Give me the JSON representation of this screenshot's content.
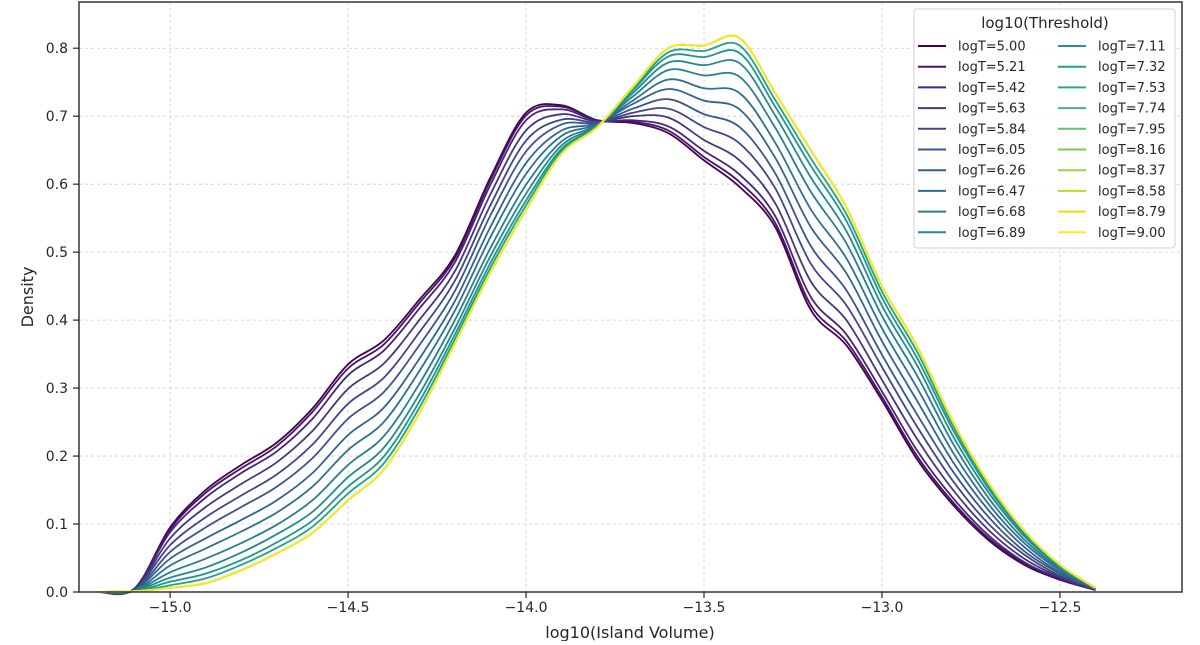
{
  "chart_data": {
    "type": "line",
    "xlabel": "log10(Island Volume)",
    "ylabel": "Density",
    "xlim": [
      -15.256,
      -12.157
    ],
    "ylim": [
      0.0,
      0.868
    ],
    "xticks": [
      "−15.0",
      "−14.5",
      "−14.0",
      "−13.5",
      "−13.0",
      "−12.5"
    ],
    "xtick_values": [
      -15.0,
      -14.5,
      -14.0,
      -13.5,
      -13.0,
      -12.5
    ],
    "yticks": [
      "0.0",
      "0.1",
      "0.2",
      "0.3",
      "0.4",
      "0.5",
      "0.6",
      "0.7",
      "0.8"
    ],
    "ytick_values": [
      0.0,
      0.1,
      0.2,
      0.3,
      0.4,
      0.5,
      0.6,
      0.7,
      0.8
    ],
    "grid": true,
    "legend": {
      "title": "log10(Threshold)",
      "placement": "top-right",
      "columns": 2
    },
    "x": [
      -15.2,
      -15.1,
      -15.0,
      -14.9,
      -14.8,
      -14.7,
      -14.6,
      -14.5,
      -14.4,
      -14.3,
      -14.2,
      -14.1,
      -14.0,
      -13.9,
      -13.8,
      -13.7,
      -13.6,
      -13.5,
      -13.4,
      -13.3,
      -13.2,
      -13.1,
      -13.0,
      -12.9,
      -12.8,
      -12.7,
      -12.6,
      -12.5,
      -12.4
    ],
    "series": [
      {
        "name": "logT=5.00",
        "color": "#440154",
        "values": [
          0,
          0.005,
          0.095,
          0.15,
          0.187,
          0.22,
          0.27,
          0.335,
          0.37,
          0.43,
          0.495,
          0.61,
          0.705,
          0.716,
          0.694,
          0.69,
          0.675,
          0.635,
          0.596,
          0.537,
          0.415,
          0.363,
          0.282,
          0.194,
          0.128,
          0.076,
          0.04,
          0.018,
          0.003
        ]
      },
      {
        "name": "logT=5.21",
        "color": "#481467",
        "values": [
          0,
          0.005,
          0.092,
          0.146,
          0.182,
          0.215,
          0.265,
          0.329,
          0.364,
          0.425,
          0.491,
          0.606,
          0.701,
          0.714,
          0.694,
          0.692,
          0.679,
          0.64,
          0.603,
          0.543,
          0.422,
          0.369,
          0.287,
          0.199,
          0.132,
          0.079,
          0.042,
          0.019,
          0.003
        ]
      },
      {
        "name": "logT=5.42",
        "color": "#482576",
        "values": [
          0,
          0.005,
          0.088,
          0.139,
          0.175,
          0.207,
          0.255,
          0.319,
          0.355,
          0.417,
          0.485,
          0.599,
          0.694,
          0.71,
          0.693,
          0.694,
          0.685,
          0.649,
          0.614,
          0.553,
          0.434,
          0.379,
          0.295,
          0.207,
          0.138,
          0.083,
          0.044,
          0.02,
          0.003
        ]
      },
      {
        "name": "logT=5.63",
        "color": "#453781",
        "values": [
          0,
          0.004,
          0.079,
          0.125,
          0.159,
          0.191,
          0.237,
          0.299,
          0.336,
          0.4,
          0.472,
          0.585,
          0.679,
          0.703,
          0.692,
          0.7,
          0.698,
          0.665,
          0.635,
          0.572,
          0.457,
          0.4,
          0.312,
          0.224,
          0.15,
          0.091,
          0.049,
          0.022,
          0.004
        ]
      },
      {
        "name": "logT=5.84",
        "color": "#404688",
        "values": [
          0,
          0.004,
          0.069,
          0.11,
          0.142,
          0.173,
          0.217,
          0.277,
          0.315,
          0.382,
          0.458,
          0.569,
          0.664,
          0.695,
          0.691,
          0.705,
          0.711,
          0.684,
          0.66,
          0.594,
          0.483,
          0.422,
          0.331,
          0.242,
          0.163,
          0.1,
          0.055,
          0.024,
          0.004
        ]
      },
      {
        "name": "logT=6.05",
        "color": "#39558c",
        "values": [
          0,
          0.003,
          0.059,
          0.095,
          0.125,
          0.155,
          0.197,
          0.255,
          0.294,
          0.363,
          0.443,
          0.554,
          0.648,
          0.688,
          0.69,
          0.711,
          0.725,
          0.703,
          0.684,
          0.616,
          0.509,
          0.444,
          0.349,
          0.26,
          0.177,
          0.11,
          0.06,
          0.027,
          0.004
        ]
      },
      {
        "name": "logT=6.26",
        "color": "#33638d",
        "values": [
          0,
          0.003,
          0.049,
          0.079,
          0.106,
          0.135,
          0.175,
          0.231,
          0.271,
          0.343,
          0.428,
          0.537,
          0.631,
          0.679,
          0.689,
          0.718,
          0.74,
          0.723,
          0.71,
          0.639,
          0.537,
          0.469,
          0.369,
          0.28,
          0.191,
          0.12,
          0.066,
          0.029,
          0.005
        ]
      },
      {
        "name": "logT=6.47",
        "color": "#2d718e",
        "values": [
          0,
          0.002,
          0.039,
          0.064,
          0.089,
          0.117,
          0.155,
          0.209,
          0.25,
          0.325,
          0.414,
          0.522,
          0.615,
          0.671,
          0.688,
          0.723,
          0.754,
          0.741,
          0.734,
          0.661,
          0.563,
          0.491,
          0.388,
          0.299,
          0.205,
          0.129,
          0.072,
          0.032,
          0.005
        ]
      },
      {
        "name": "logT=6.68",
        "color": "#287d8e",
        "values": [
          0,
          0.002,
          0.029,
          0.049,
          0.072,
          0.099,
          0.135,
          0.187,
          0.229,
          0.306,
          0.4,
          0.506,
          0.599,
          0.663,
          0.687,
          0.729,
          0.768,
          0.76,
          0.758,
          0.683,
          0.589,
          0.513,
          0.406,
          0.317,
          0.218,
          0.138,
          0.077,
          0.034,
          0.005
        ]
      },
      {
        "name": "logT=6.89",
        "color": "#238a8d",
        "values": [
          0,
          0.002,
          0.021,
          0.036,
          0.058,
          0.085,
          0.118,
          0.169,
          0.212,
          0.291,
          0.388,
          0.494,
          0.586,
          0.657,
          0.686,
          0.734,
          0.779,
          0.775,
          0.778,
          0.701,
          0.61,
          0.531,
          0.421,
          0.332,
          0.229,
          0.146,
          0.082,
          0.036,
          0.005
        ]
      },
      {
        "name": "logT=7.11",
        "color": "#1f968b",
        "values": [
          0,
          0.001,
          0.015,
          0.027,
          0.047,
          0.073,
          0.105,
          0.155,
          0.199,
          0.28,
          0.379,
          0.484,
          0.576,
          0.652,
          0.685,
          0.738,
          0.788,
          0.787,
          0.793,
          0.714,
          0.627,
          0.546,
          0.433,
          0.343,
          0.238,
          0.152,
          0.085,
          0.038,
          0.006
        ]
      },
      {
        "name": "logT=7.32",
        "color": "#20a386",
        "values": [
          0,
          0.001,
          0.01,
          0.02,
          0.04,
          0.065,
          0.096,
          0.145,
          0.189,
          0.271,
          0.372,
          0.477,
          0.569,
          0.649,
          0.684,
          0.74,
          0.794,
          0.796,
          0.804,
          0.724,
          0.638,
          0.556,
          0.442,
          0.352,
          0.244,
          0.156,
          0.088,
          0.039,
          0.006
        ]
      },
      {
        "name": "logT=7.53",
        "color": "#29af7f",
        "values": [
          0,
          0.001,
          0.006,
          0.013,
          0.032,
          0.057,
          0.087,
          0.135,
          0.18,
          0.263,
          0.366,
          0.47,
          0.562,
          0.645,
          0.684,
          0.743,
          0.8,
          0.804,
          0.815,
          0.734,
          0.65,
          0.566,
          0.45,
          0.36,
          0.25,
          0.16,
          0.09,
          0.04,
          0.006
        ]
      },
      {
        "name": "logT=7.74",
        "color": "#3dbc74",
        "values": [
          0,
          0.001,
          0.006,
          0.013,
          0.032,
          0.057,
          0.087,
          0.135,
          0.18,
          0.263,
          0.366,
          0.47,
          0.562,
          0.645,
          0.684,
          0.743,
          0.8,
          0.804,
          0.815,
          0.734,
          0.65,
          0.566,
          0.45,
          0.36,
          0.25,
          0.16,
          0.09,
          0.04,
          0.006
        ]
      },
      {
        "name": "logT=7.95",
        "color": "#56c667",
        "values": [
          0,
          0.001,
          0.006,
          0.013,
          0.032,
          0.057,
          0.087,
          0.135,
          0.18,
          0.263,
          0.366,
          0.47,
          0.562,
          0.645,
          0.684,
          0.743,
          0.8,
          0.804,
          0.815,
          0.734,
          0.65,
          0.566,
          0.45,
          0.36,
          0.25,
          0.16,
          0.09,
          0.04,
          0.006
        ]
      },
      {
        "name": "logT=8.16",
        "color": "#75d054",
        "values": [
          0,
          0.001,
          0.006,
          0.013,
          0.032,
          0.057,
          0.087,
          0.135,
          0.18,
          0.263,
          0.366,
          0.47,
          0.562,
          0.645,
          0.684,
          0.743,
          0.8,
          0.804,
          0.815,
          0.734,
          0.65,
          0.566,
          0.45,
          0.36,
          0.25,
          0.16,
          0.09,
          0.04,
          0.006
        ]
      },
      {
        "name": "logT=8.37",
        "color": "#95d840",
        "values": [
          0,
          0.001,
          0.006,
          0.013,
          0.032,
          0.057,
          0.087,
          0.135,
          0.18,
          0.263,
          0.366,
          0.47,
          0.562,
          0.645,
          0.684,
          0.743,
          0.8,
          0.804,
          0.815,
          0.734,
          0.65,
          0.566,
          0.45,
          0.36,
          0.25,
          0.16,
          0.09,
          0.04,
          0.006
        ]
      },
      {
        "name": "logT=8.58",
        "color": "#bade28",
        "values": [
          0,
          0.001,
          0.006,
          0.013,
          0.032,
          0.057,
          0.087,
          0.135,
          0.18,
          0.263,
          0.366,
          0.47,
          0.562,
          0.645,
          0.684,
          0.743,
          0.8,
          0.804,
          0.815,
          0.734,
          0.65,
          0.566,
          0.45,
          0.36,
          0.25,
          0.16,
          0.09,
          0.04,
          0.006
        ]
      },
      {
        "name": "logT=8.79",
        "color": "#dde318",
        "values": [
          0,
          0.001,
          0.006,
          0.013,
          0.032,
          0.057,
          0.087,
          0.135,
          0.18,
          0.263,
          0.366,
          0.47,
          0.562,
          0.645,
          0.684,
          0.743,
          0.8,
          0.804,
          0.815,
          0.734,
          0.65,
          0.566,
          0.45,
          0.36,
          0.25,
          0.16,
          0.09,
          0.04,
          0.006
        ]
      },
      {
        "name": "logT=9.00",
        "color": "#fde725",
        "values": [
          0,
          0.001,
          0.006,
          0.013,
          0.032,
          0.057,
          0.087,
          0.135,
          0.18,
          0.263,
          0.366,
          0.47,
          0.562,
          0.645,
          0.684,
          0.743,
          0.8,
          0.804,
          0.815,
          0.734,
          0.65,
          0.566,
          0.45,
          0.36,
          0.25,
          0.16,
          0.09,
          0.04,
          0.006
        ]
      }
    ]
  }
}
